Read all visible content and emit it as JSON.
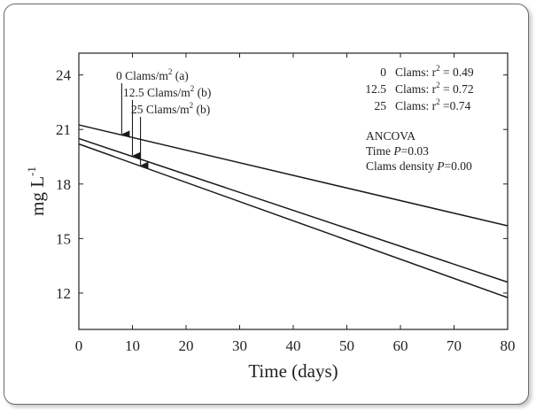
{
  "chart_data": {
    "type": "line",
    "xlabel": "Time (days)",
    "ylabel": "mg L",
    "ylabel_sup": "-1",
    "xlim": [
      0,
      80
    ],
    "ylim": [
      10,
      25.2
    ],
    "xticks": [
      0,
      10,
      20,
      30,
      40,
      50,
      60,
      70,
      80
    ],
    "yticks": [
      12,
      15,
      18,
      21,
      24
    ],
    "grid": false,
    "series": [
      {
        "name": "0 Clams/m² (a)",
        "x": [
          0,
          80
        ],
        "y": [
          21.25,
          15.7
        ]
      },
      {
        "name": "12.5 Clams/m² (b)",
        "x": [
          0,
          80
        ],
        "y": [
          20.5,
          12.6
        ]
      },
      {
        "name": "25 Clams/m² (b)",
        "x": [
          0,
          80
        ],
        "y": [
          20.2,
          11.75
        ]
      }
    ],
    "annotations": {
      "labels": [
        {
          "pre": "0 Clams/m",
          "sup": "2",
          "post": " (a)",
          "arrow_x": 8,
          "series": 0
        },
        {
          "pre": "12.5 Clams/m",
          "sup": "2",
          "post": " (b)",
          "arrow_x": 10,
          "series": 1
        },
        {
          "pre": "25 Clams/m",
          "sup": "2",
          "post": " (b)",
          "arrow_x": 11.5,
          "series": 2
        }
      ],
      "r2": [
        {
          "group": "0",
          "label": "Clams:",
          "r": "r",
          "sup": "2",
          "value": " = 0.49"
        },
        {
          "group": "12.5",
          "label": "Clams:",
          "r": "r",
          "sup": "2",
          "value": " = 0.72"
        },
        {
          "group": "25",
          "label": "Clams:",
          "r": "r",
          "sup": "2",
          "value": " =0.74"
        }
      ],
      "ancova": {
        "title": "ANCOVA",
        "time_prefix": "Time ",
        "time_p": "P",
        "time_value": "=0.03",
        "density_prefix": "Clams density ",
        "density_p": "P",
        "density_value": "=0.00"
      }
    }
  }
}
